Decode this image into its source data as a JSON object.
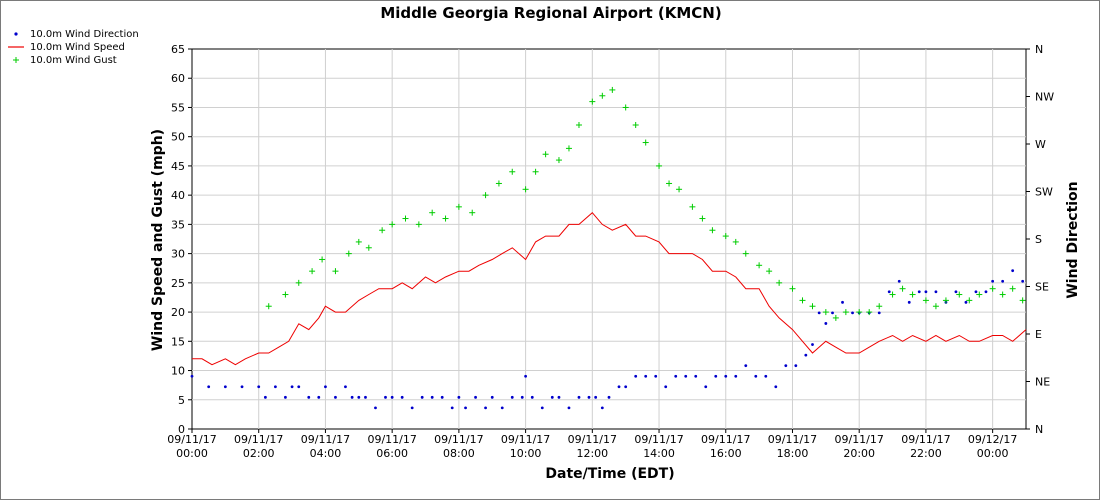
{
  "chart_data": {
    "type": "scatter",
    "title": "Middle Georgia Regional Airport (KMCN)",
    "xlabel": "Date/Time (EDT)",
    "ylabel": "Wind Speed and Gust (mph)",
    "y2label": "Wind Direction",
    "ylim": [
      0,
      65
    ],
    "y2lim": [
      0,
      360
    ],
    "xlim_hours": [
      0,
      25
    ],
    "grid": true,
    "legend_position": "top-left",
    "yticks": [
      0,
      5,
      10,
      15,
      20,
      25,
      30,
      35,
      40,
      45,
      50,
      55,
      60,
      65
    ],
    "y2ticks": [
      {
        "value": 0,
        "label": "N"
      },
      {
        "value": 45,
        "label": "NE"
      },
      {
        "value": 90,
        "label": "E"
      },
      {
        "value": 135,
        "label": "SE"
      },
      {
        "value": 180,
        "label": "S"
      },
      {
        "value": 225,
        "label": "SW"
      },
      {
        "value": 270,
        "label": "W"
      },
      {
        "value": 315,
        "label": "NW"
      },
      {
        "value": 360,
        "label": "N"
      }
    ],
    "xticks": [
      {
        "value": 0,
        "date": "09/11/17",
        "time": "00:00"
      },
      {
        "value": 2,
        "date": "09/11/17",
        "time": "02:00"
      },
      {
        "value": 4,
        "date": "09/11/17",
        "time": "04:00"
      },
      {
        "value": 6,
        "date": "09/11/17",
        "time": "06:00"
      },
      {
        "value": 8,
        "date": "09/11/17",
        "time": "08:00"
      },
      {
        "value": 10,
        "date": "09/11/17",
        "time": "10:00"
      },
      {
        "value": 12,
        "date": "09/11/17",
        "time": "12:00"
      },
      {
        "value": 14,
        "date": "09/11/17",
        "time": "14:00"
      },
      {
        "value": 16,
        "date": "09/11/17",
        "time": "16:00"
      },
      {
        "value": 18,
        "date": "09/11/17",
        "time": "18:00"
      },
      {
        "value": 20,
        "date": "09/11/17",
        "time": "20:00"
      },
      {
        "value": 22,
        "date": "09/11/17",
        "time": "22:00"
      },
      {
        "value": 24,
        "date": "09/12/17",
        "time": "00:00"
      }
    ],
    "series": [
      {
        "name": "10.0m Wind Direction",
        "axis": "right",
        "style": "dots",
        "color": "#0000cc",
        "points": [
          [
            0,
            50
          ],
          [
            0.5,
            40
          ],
          [
            1,
            40
          ],
          [
            1.5,
            40
          ],
          [
            2,
            40
          ],
          [
            2.2,
            30
          ],
          [
            2.5,
            40
          ],
          [
            2.8,
            30
          ],
          [
            3,
            40
          ],
          [
            3.2,
            40
          ],
          [
            3.5,
            30
          ],
          [
            3.8,
            30
          ],
          [
            4,
            40
          ],
          [
            4.3,
            30
          ],
          [
            4.6,
            40
          ],
          [
            4.8,
            30
          ],
          [
            5,
            30
          ],
          [
            5.2,
            30
          ],
          [
            5.5,
            20
          ],
          [
            5.8,
            30
          ],
          [
            6,
            30
          ],
          [
            6.3,
            30
          ],
          [
            6.6,
            20
          ],
          [
            6.9,
            30
          ],
          [
            7.2,
            30
          ],
          [
            7.5,
            30
          ],
          [
            7.8,
            20
          ],
          [
            8,
            30
          ],
          [
            8.2,
            20
          ],
          [
            8.5,
            30
          ],
          [
            8.8,
            20
          ],
          [
            9,
            30
          ],
          [
            9.3,
            20
          ],
          [
            9.6,
            30
          ],
          [
            9.9,
            30
          ],
          [
            10,
            50
          ],
          [
            10.2,
            30
          ],
          [
            10.5,
            20
          ],
          [
            10.8,
            30
          ],
          [
            11,
            30
          ],
          [
            11.3,
            20
          ],
          [
            11.6,
            30
          ],
          [
            11.9,
            30
          ],
          [
            12.1,
            30
          ],
          [
            12.3,
            20
          ],
          [
            12.5,
            30
          ],
          [
            12.8,
            40
          ],
          [
            13,
            40
          ],
          [
            13.3,
            50
          ],
          [
            13.6,
            50
          ],
          [
            13.9,
            50
          ],
          [
            14.2,
            40
          ],
          [
            14.5,
            50
          ],
          [
            14.8,
            50
          ],
          [
            15.1,
            50
          ],
          [
            15.4,
            40
          ],
          [
            15.7,
            50
          ],
          [
            16,
            50
          ],
          [
            16.3,
            50
          ],
          [
            16.6,
            60
          ],
          [
            16.9,
            50
          ],
          [
            17.2,
            50
          ],
          [
            17.5,
            40
          ],
          [
            17.8,
            60
          ],
          [
            18.1,
            60
          ],
          [
            18.4,
            70
          ],
          [
            18.6,
            80
          ],
          [
            18.8,
            110
          ],
          [
            19,
            100
          ],
          [
            19.2,
            110
          ],
          [
            19.5,
            120
          ],
          [
            19.8,
            110
          ],
          [
            20,
            110
          ],
          [
            20.3,
            110
          ],
          [
            20.6,
            110
          ],
          [
            20.9,
            130
          ],
          [
            21.2,
            140
          ],
          [
            21.5,
            120
          ],
          [
            21.8,
            130
          ],
          [
            22,
            130
          ],
          [
            22.3,
            130
          ],
          [
            22.6,
            120
          ],
          [
            22.9,
            130
          ],
          [
            23.2,
            120
          ],
          [
            23.5,
            130
          ],
          [
            23.8,
            130
          ],
          [
            24,
            140
          ],
          [
            24.3,
            140
          ],
          [
            24.6,
            150
          ],
          [
            24.9,
            140
          ]
        ]
      },
      {
        "name": "10.0m Wind Speed",
        "axis": "left",
        "style": "line",
        "color": "#ee0000",
        "points": [
          [
            0,
            12
          ],
          [
            0.3,
            12
          ],
          [
            0.6,
            11
          ],
          [
            1,
            12
          ],
          [
            1.3,
            11
          ],
          [
            1.6,
            12
          ],
          [
            2,
            13
          ],
          [
            2.3,
            13
          ],
          [
            2.6,
            14
          ],
          [
            2.9,
            15
          ],
          [
            3.2,
            18
          ],
          [
            3.5,
            17
          ],
          [
            3.8,
            19
          ],
          [
            4,
            21
          ],
          [
            4.3,
            20
          ],
          [
            4.6,
            20
          ],
          [
            5,
            22
          ],
          [
            5.3,
            23
          ],
          [
            5.6,
            24
          ],
          [
            6,
            24
          ],
          [
            6.3,
            25
          ],
          [
            6.6,
            24
          ],
          [
            7,
            26
          ],
          [
            7.3,
            25
          ],
          [
            7.6,
            26
          ],
          [
            8,
            27
          ],
          [
            8.3,
            27
          ],
          [
            8.6,
            28
          ],
          [
            9,
            29
          ],
          [
            9.3,
            30
          ],
          [
            9.6,
            31
          ],
          [
            10,
            29
          ],
          [
            10.3,
            32
          ],
          [
            10.6,
            33
          ],
          [
            11,
            33
          ],
          [
            11.3,
            35
          ],
          [
            11.6,
            35
          ],
          [
            12,
            37
          ],
          [
            12.3,
            35
          ],
          [
            12.6,
            34
          ],
          [
            13,
            35
          ],
          [
            13.3,
            33
          ],
          [
            13.6,
            33
          ],
          [
            14,
            32
          ],
          [
            14.3,
            30
          ],
          [
            14.6,
            30
          ],
          [
            15,
            30
          ],
          [
            15.3,
            29
          ],
          [
            15.6,
            27
          ],
          [
            16,
            27
          ],
          [
            16.3,
            26
          ],
          [
            16.6,
            24
          ],
          [
            17,
            24
          ],
          [
            17.3,
            21
          ],
          [
            17.6,
            19
          ],
          [
            18,
            17
          ],
          [
            18.3,
            15
          ],
          [
            18.6,
            13
          ],
          [
            19,
            15
          ],
          [
            19.3,
            14
          ],
          [
            19.6,
            13
          ],
          [
            20,
            13
          ],
          [
            20.3,
            14
          ],
          [
            20.6,
            15
          ],
          [
            21,
            16
          ],
          [
            21.3,
            15
          ],
          [
            21.6,
            16
          ],
          [
            22,
            15
          ],
          [
            22.3,
            16
          ],
          [
            22.6,
            15
          ],
          [
            23,
            16
          ],
          [
            23.3,
            15
          ],
          [
            23.6,
            15
          ],
          [
            24,
            16
          ],
          [
            24.3,
            16
          ],
          [
            24.6,
            15
          ],
          [
            25,
            17
          ]
        ]
      },
      {
        "name": "10.0m Wind Gust",
        "axis": "left",
        "style": "plus",
        "color": "#00cc00",
        "points": [
          [
            2.3,
            21
          ],
          [
            2.8,
            23
          ],
          [
            3.2,
            25
          ],
          [
            3.6,
            27
          ],
          [
            3.9,
            29
          ],
          [
            4.3,
            27
          ],
          [
            4.7,
            30
          ],
          [
            5,
            32
          ],
          [
            5.3,
            31
          ],
          [
            5.7,
            34
          ],
          [
            6,
            35
          ],
          [
            6.4,
            36
          ],
          [
            6.8,
            35
          ],
          [
            7.2,
            37
          ],
          [
            7.6,
            36
          ],
          [
            8,
            38
          ],
          [
            8.4,
            37
          ],
          [
            8.8,
            40
          ],
          [
            9.2,
            42
          ],
          [
            9.6,
            44
          ],
          [
            10,
            41
          ],
          [
            10.3,
            44
          ],
          [
            10.6,
            47
          ],
          [
            11,
            46
          ],
          [
            11.3,
            48
          ],
          [
            11.6,
            52
          ],
          [
            12,
            56
          ],
          [
            12.3,
            57
          ],
          [
            12.6,
            58
          ],
          [
            13,
            55
          ],
          [
            13.3,
            52
          ],
          [
            13.6,
            49
          ],
          [
            14,
            45
          ],
          [
            14.3,
            42
          ],
          [
            14.6,
            41
          ],
          [
            15,
            38
          ],
          [
            15.3,
            36
          ],
          [
            15.6,
            34
          ],
          [
            16,
            33
          ],
          [
            16.3,
            32
          ],
          [
            16.6,
            30
          ],
          [
            17,
            28
          ],
          [
            17.3,
            27
          ],
          [
            17.6,
            25
          ],
          [
            18,
            24
          ],
          [
            18.3,
            22
          ],
          [
            18.6,
            21
          ],
          [
            19,
            20
          ],
          [
            19.3,
            19
          ],
          [
            19.6,
            20
          ],
          [
            20,
            20
          ],
          [
            20.3,
            20
          ],
          [
            20.6,
            21
          ],
          [
            21,
            23
          ],
          [
            21.3,
            24
          ],
          [
            21.6,
            23
          ],
          [
            22,
            22
          ],
          [
            22.3,
            21
          ],
          [
            22.6,
            22
          ],
          [
            23,
            23
          ],
          [
            23.3,
            22
          ],
          [
            23.6,
            23
          ],
          [
            24,
            24
          ],
          [
            24.3,
            23
          ],
          [
            24.6,
            24
          ],
          [
            24.9,
            22
          ]
        ]
      }
    ]
  }
}
